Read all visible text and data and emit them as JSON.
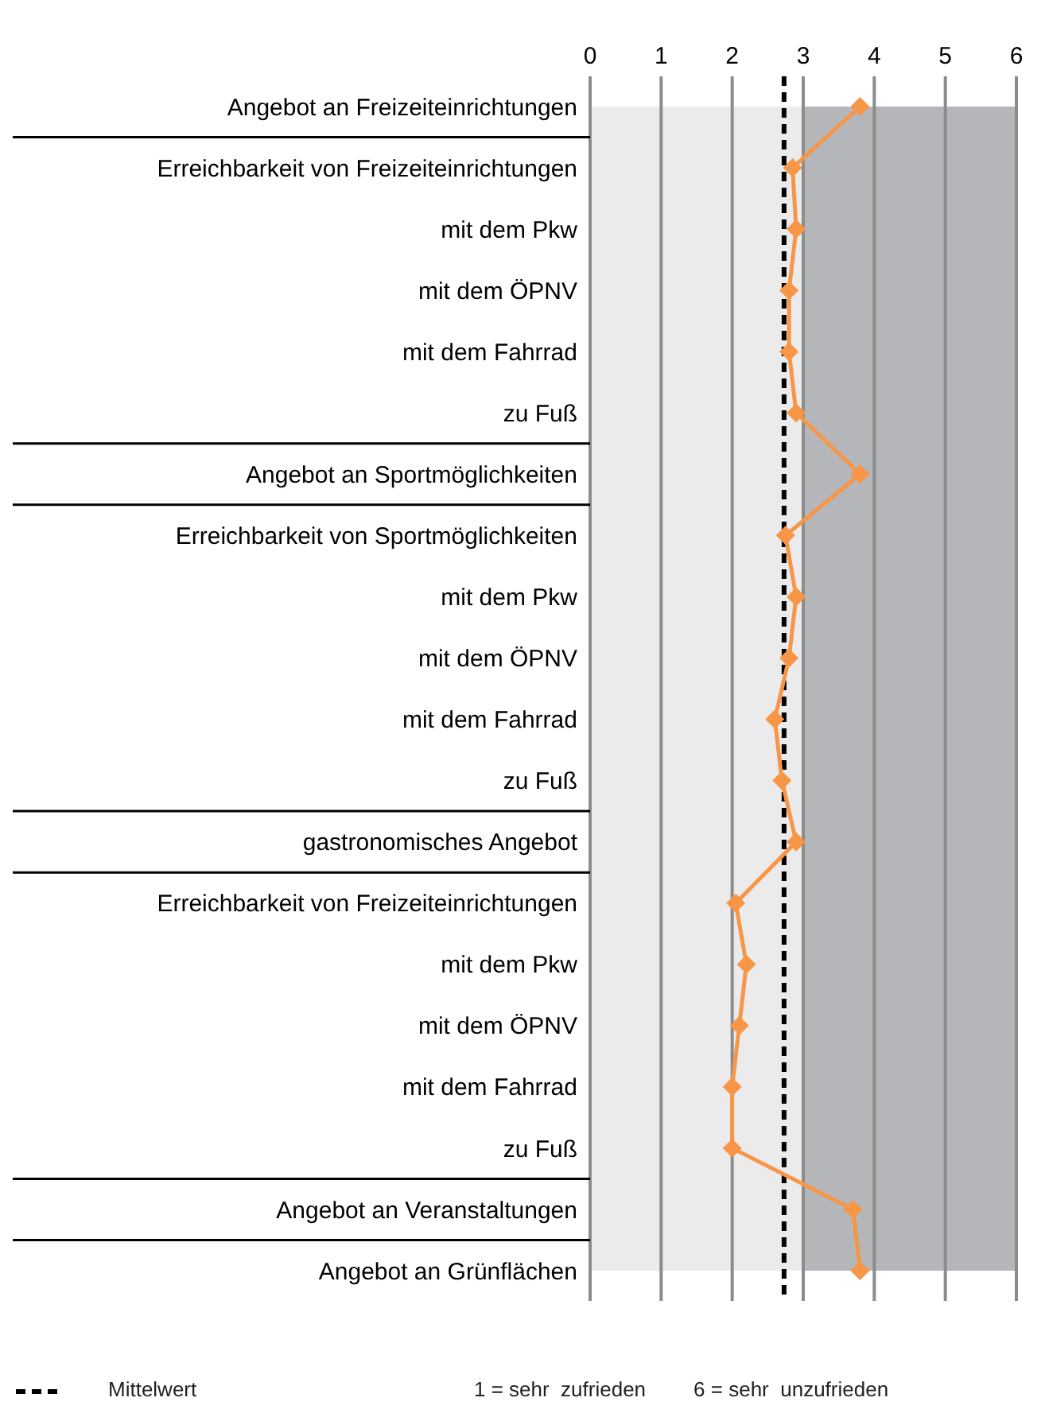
{
  "chart_data": {
    "type": "line",
    "orientation": "horizontal",
    "categories": [
      "Angebot an Freizeiteinrichtungen",
      "Erreichbarkeit von Freizeiteinrichtungen",
      "mit dem Pkw",
      "mit dem ÖPNV",
      "mit dem Fahrrad",
      "zu Fuß",
      "Angebot an Sportmöglichkeiten",
      "Erreichbarkeit von Sportmöglichkeiten",
      "mit dem Pkw",
      "mit dem ÖPNV",
      "mit dem Fahrrad",
      "zu Fuß",
      "gastronomisches Angebot",
      "Erreichbarkeit von Freizeiteinrichtungen",
      "mit dem Pkw",
      "mit dem ÖPNV",
      "mit dem Fahrrad",
      "zu Fuß",
      "Angebot an Veranstaltungen",
      "Angebot an Grünflächen"
    ],
    "series": [
      {
        "color": "#f79646",
        "values": [
          3.8,
          2.85,
          2.9,
          2.8,
          2.8,
          2.9,
          3.8,
          2.75,
          2.9,
          2.8,
          2.6,
          2.7,
          2.9,
          2.05,
          2.2,
          2.1,
          2.0,
          2.0,
          3.7,
          3.8
        ]
      }
    ],
    "marker": "diamond",
    "line_style": "solid",
    "xlim": [
      0,
      6
    ],
    "xticks": [
      0,
      1,
      2,
      3,
      4,
      5,
      6
    ],
    "grid": "x",
    "bands": [
      {
        "axis": "x",
        "from": 0,
        "to": 3,
        "color": "#ebebeb"
      },
      {
        "axis": "x",
        "from": 3,
        "to": 6,
        "color": "#b5b6b9"
      }
    ],
    "ref_lines": [
      {
        "axis": "x",
        "value": 2.73,
        "label": "Mittelwert",
        "color": "#000000",
        "line_style": "dashed"
      }
    ],
    "legend": "bottom",
    "annotations": [
      "1 = sehr  zufrieden",
      "6 = sehr  unzufrieden"
    ]
  }
}
